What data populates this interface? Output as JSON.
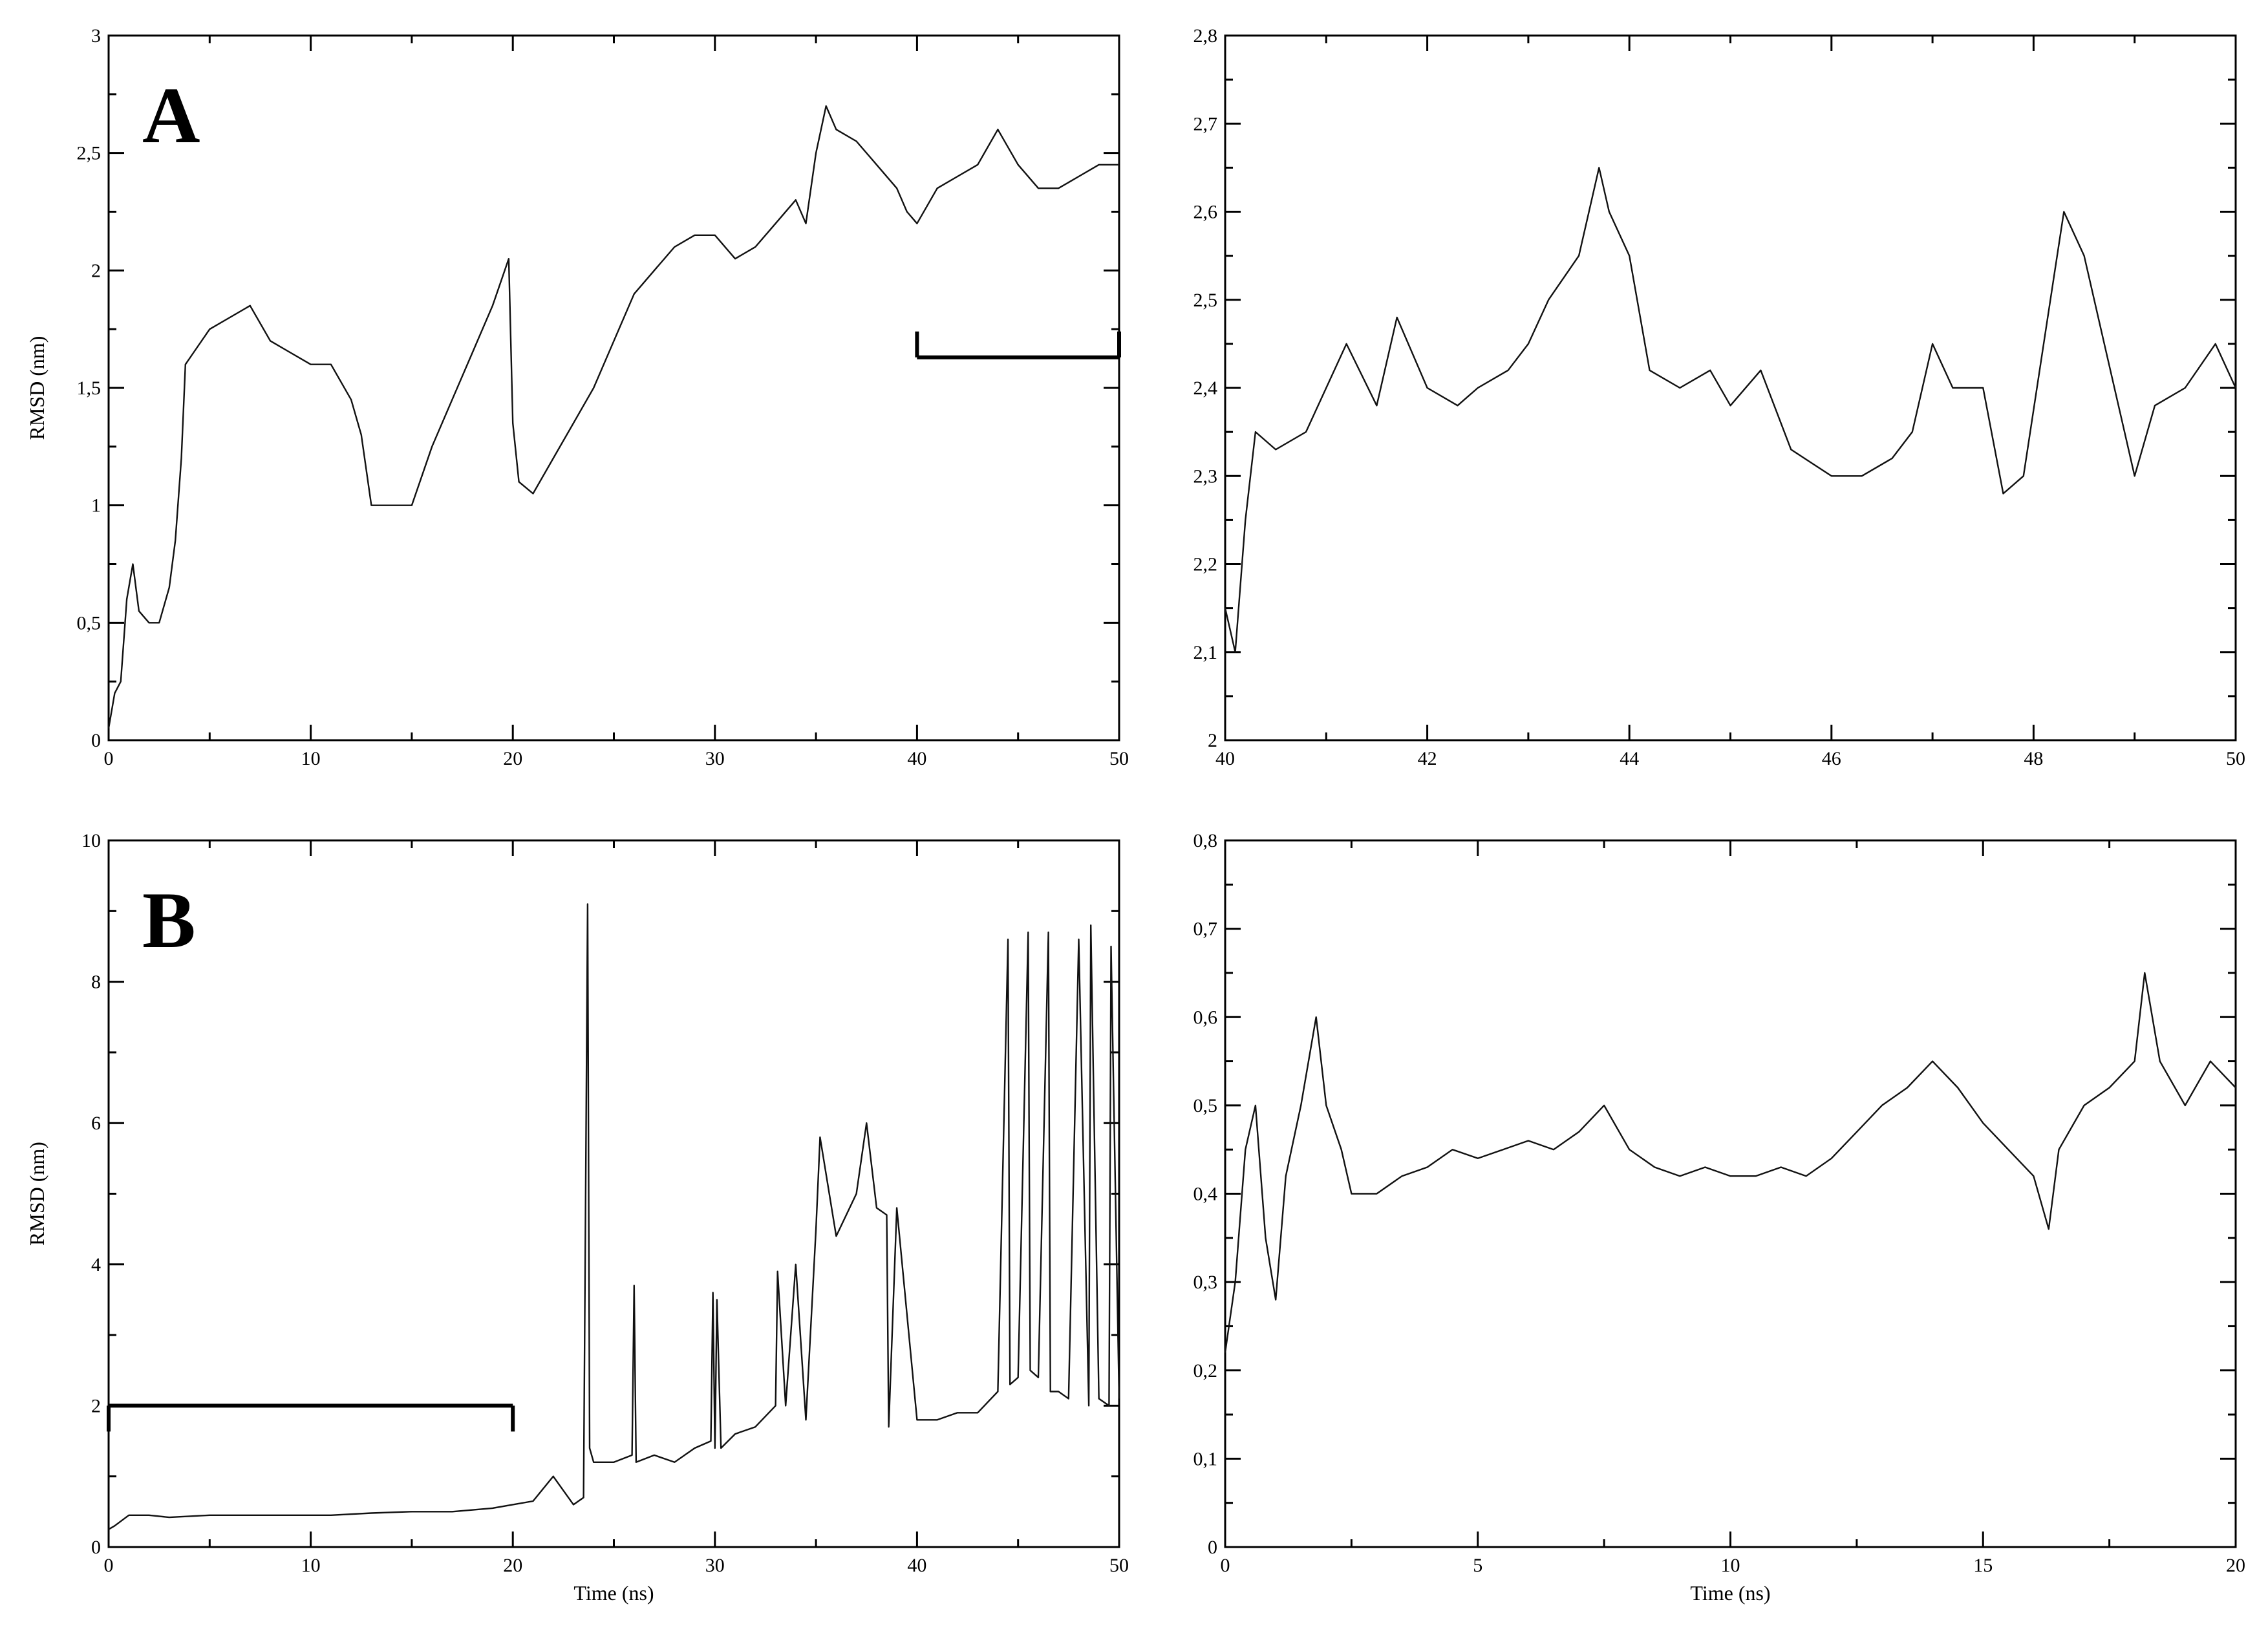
{
  "chart_data": [
    {
      "id": "A-full",
      "type": "line",
      "panel_label": "A",
      "title": "",
      "xlabel": "",
      "ylabel": "RMSD (nm)",
      "xlim": [
        0,
        50
      ],
      "ylim": [
        0,
        3
      ],
      "xticks": [
        0,
        10,
        20,
        30,
        40,
        50
      ],
      "xtick_labels": [
        "0",
        "10",
        "20",
        "30",
        "40",
        "50"
      ],
      "yticks": [
        0,
        0.5,
        1,
        1.5,
        2,
        2.5,
        3
      ],
      "ytick_labels": [
        "0",
        "0,5",
        "1",
        "1,5",
        "2",
        "2,5",
        "3"
      ],
      "grid": false,
      "bracket": {
        "x_start": 40,
        "x_end": 50,
        "y": 1.63
      },
      "series": [
        {
          "color": "#111111",
          "x": [
            0,
            0.3,
            0.6,
            0.9,
            1.2,
            1.5,
            2,
            2.5,
            3,
            3.3,
            3.6,
            3.8,
            4.2,
            5,
            6,
            7,
            8,
            9,
            10,
            11,
            12,
            12.5,
            13,
            14,
            15,
            16,
            17,
            18,
            19,
            19.8,
            20,
            20.3,
            21,
            22,
            23,
            24,
            25,
            26,
            27,
            28,
            29,
            30,
            31,
            32,
            33,
            34,
            34.5,
            35,
            35.5,
            36,
            37,
            38,
            39,
            39.5,
            40,
            41,
            42,
            43,
            44,
            45,
            46,
            47,
            48,
            49,
            50
          ],
          "y": [
            0.05,
            0.2,
            0.25,
            0.6,
            0.75,
            0.55,
            0.5,
            0.5,
            0.65,
            0.85,
            1.2,
            1.6,
            1.65,
            1.75,
            1.8,
            1.85,
            1.7,
            1.65,
            1.6,
            1.6,
            1.45,
            1.3,
            1.0,
            1.0,
            1.0,
            1.25,
            1.45,
            1.65,
            1.85,
            2.05,
            1.35,
            1.1,
            1.05,
            1.2,
            1.35,
            1.5,
            1.7,
            1.9,
            2.0,
            2.1,
            2.15,
            2.15,
            2.05,
            2.1,
            2.2,
            2.3,
            2.2,
            2.5,
            2.7,
            2.6,
            2.55,
            2.45,
            2.35,
            2.25,
            2.2,
            2.35,
            2.4,
            2.45,
            2.6,
            2.45,
            2.35,
            2.35,
            2.4,
            2.45,
            2.45
          ]
        }
      ]
    },
    {
      "id": "A-zoom",
      "type": "line",
      "title": "",
      "xlabel": "",
      "ylabel": "",
      "xlim": [
        40,
        50
      ],
      "ylim": [
        2,
        2.8
      ],
      "xticks": [
        40,
        42,
        44,
        46,
        48,
        50
      ],
      "xtick_labels": [
        "40",
        "42",
        "44",
        "46",
        "48",
        "50"
      ],
      "yticks": [
        2,
        2.1,
        2.2,
        2.3,
        2.4,
        2.5,
        2.6,
        2.7,
        2.8
      ],
      "ytick_labels": [
        "2",
        "2,1",
        "2,2",
        "2,3",
        "2,4",
        "2,5",
        "2,6",
        "2,7",
        "2,8"
      ],
      "grid": false,
      "series": [
        {
          "color": "#111111",
          "x": [
            40,
            40.1,
            40.2,
            40.3,
            40.5,
            40.8,
            41,
            41.2,
            41.5,
            41.7,
            42,
            42.3,
            42.5,
            42.8,
            43,
            43.2,
            43.5,
            43.7,
            43.8,
            44,
            44.2,
            44.5,
            44.8,
            45,
            45.3,
            45.6,
            46,
            46.3,
            46.6,
            46.8,
            47,
            47.2,
            47.5,
            47.7,
            47.9,
            48.1,
            48.3,
            48.5,
            48.7,
            48.9,
            49,
            49.2,
            49.5,
            49.8,
            50
          ],
          "y": [
            2.15,
            2.1,
            2.25,
            2.35,
            2.33,
            2.35,
            2.4,
            2.45,
            2.38,
            2.48,
            2.4,
            2.38,
            2.4,
            2.42,
            2.45,
            2.5,
            2.55,
            2.65,
            2.6,
            2.55,
            2.42,
            2.4,
            2.42,
            2.38,
            2.42,
            2.33,
            2.3,
            2.3,
            2.32,
            2.35,
            2.45,
            2.4,
            2.4,
            2.28,
            2.3,
            2.45,
            2.6,
            2.55,
            2.45,
            2.35,
            2.3,
            2.38,
            2.4,
            2.45,
            2.4
          ]
        }
      ]
    },
    {
      "id": "B-full",
      "type": "line",
      "panel_label": "B",
      "title": "",
      "xlabel": "Time (ns)",
      "ylabel": "RMSD (nm)",
      "xlim": [
        0,
        50
      ],
      "ylim": [
        0,
        10
      ],
      "xticks": [
        0,
        10,
        20,
        30,
        40,
        50
      ],
      "xtick_labels": [
        "0",
        "10",
        "20",
        "30",
        "40",
        "50"
      ],
      "yticks": [
        0,
        2,
        4,
        6,
        8,
        10
      ],
      "ytick_labels": [
        "0",
        "2",
        "4",
        "6",
        "8",
        "10"
      ],
      "grid": false,
      "bracket": {
        "x_start": 0,
        "x_end": 20,
        "y": 2.0
      },
      "series": [
        {
          "color": "#111111",
          "x": [
            0,
            0.3,
            1,
            2,
            3,
            5,
            7,
            9,
            11,
            13,
            15,
            17,
            19,
            20,
            21,
            22,
            23,
            23.5,
            23.7,
            23.8,
            24,
            25,
            25.9,
            26,
            26.1,
            27,
            28,
            29,
            29.8,
            29.9,
            30,
            30.1,
            30.3,
            31,
            32,
            33,
            33.1,
            33.5,
            34,
            34.5,
            35,
            35.2,
            36,
            37,
            37.5,
            38,
            38.5,
            38.6,
            39,
            40,
            41,
            42,
            43,
            44,
            44.5,
            44.6,
            45,
            45.5,
            45.6,
            46,
            46.5,
            46.6,
            47,
            47.5,
            48,
            48.5,
            48.6,
            49,
            49.5,
            49.6,
            50
          ],
          "y": [
            0.25,
            0.3,
            0.45,
            0.45,
            0.42,
            0.45,
            0.45,
            0.45,
            0.45,
            0.48,
            0.5,
            0.5,
            0.55,
            0.6,
            0.65,
            1.0,
            0.6,
            0.7,
            9.1,
            1.4,
            1.2,
            1.2,
            1.3,
            3.7,
            1.2,
            1.3,
            1.2,
            1.4,
            1.5,
            3.6,
            1.4,
            3.5,
            1.4,
            1.6,
            1.7,
            2.0,
            3.9,
            2.0,
            4.0,
            1.8,
            4.5,
            5.8,
            4.4,
            5.0,
            6.0,
            4.8,
            4.7,
            1.7,
            4.8,
            1.8,
            1.8,
            1.9,
            1.9,
            2.2,
            8.6,
            2.3,
            2.4,
            8.7,
            2.5,
            2.4,
            8.7,
            2.2,
            2.2,
            2.1,
            8.6,
            2.0,
            8.8,
            2.1,
            2.0,
            8.5,
            2.1
          ]
        }
      ]
    },
    {
      "id": "B-zoom",
      "type": "line",
      "title": "",
      "xlabel": "Time (ns)",
      "ylabel": "",
      "xlim": [
        0,
        20
      ],
      "ylim": [
        0,
        0.8
      ],
      "xticks": [
        0,
        5,
        10,
        15,
        20
      ],
      "xtick_labels": [
        "0",
        "5",
        "10",
        "15",
        "20"
      ],
      "yticks": [
        0,
        0.1,
        0.2,
        0.3,
        0.4,
        0.5,
        0.6,
        0.7,
        0.8
      ],
      "ytick_labels": [
        "0",
        "0,1",
        "0,2",
        "0,3",
        "0,4",
        "0,5",
        "0,6",
        "0,7",
        "0,8"
      ],
      "grid": false,
      "series": [
        {
          "color": "#111111",
          "x": [
            0,
            0.2,
            0.4,
            0.6,
            0.8,
            1.0,
            1.2,
            1.5,
            1.8,
            2.0,
            2.3,
            2.5,
            3,
            3.5,
            4,
            4.5,
            5,
            5.5,
            6,
            6.5,
            7,
            7.5,
            8,
            8.5,
            9,
            9.5,
            10,
            10.5,
            11,
            11.5,
            12,
            12.5,
            13,
            13.5,
            14,
            14.5,
            15,
            15.5,
            16,
            16.3,
            16.5,
            17,
            17.5,
            18,
            18.2,
            18.5,
            19,
            19.5,
            20
          ],
          "y": [
            0.22,
            0.3,
            0.45,
            0.5,
            0.35,
            0.28,
            0.42,
            0.5,
            0.6,
            0.5,
            0.45,
            0.4,
            0.4,
            0.42,
            0.43,
            0.45,
            0.44,
            0.45,
            0.46,
            0.45,
            0.47,
            0.5,
            0.45,
            0.43,
            0.42,
            0.43,
            0.42,
            0.42,
            0.43,
            0.42,
            0.44,
            0.47,
            0.5,
            0.52,
            0.55,
            0.52,
            0.48,
            0.45,
            0.42,
            0.36,
            0.45,
            0.5,
            0.52,
            0.55,
            0.65,
            0.55,
            0.5,
            0.55,
            0.52
          ]
        }
      ]
    }
  ]
}
